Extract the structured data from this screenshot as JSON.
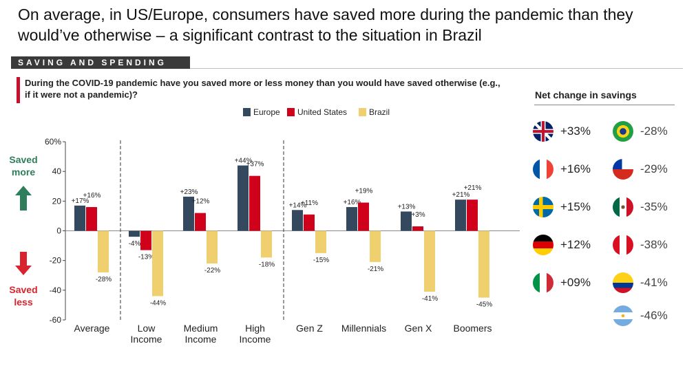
{
  "headline": "On average, in US/Europe, consumers have saved more during the pandemic than they would’ve otherwise – a significant contrast to the situation in Brazil",
  "section_label": "SAVING AND SPENDING",
  "question": "During the COVID-19 pandemic have you saved more or less money than you would have saved otherwise (e.g., if it were not a pandemic)?",
  "colors": {
    "europe": "#34495e",
    "us": "#d0021b",
    "brazil": "#f0cf6e",
    "up_arrow": "#2e7d5b",
    "down_arrow": "#d9232d"
  },
  "side_labels": {
    "saved_more": [
      "Saved",
      "more"
    ],
    "saved_less": [
      "Saved",
      "less"
    ]
  },
  "chart_data": {
    "type": "bar",
    "title": "During the COVID-19 pandemic have you saved more or less money than you would have saved otherwise (e.g., if it were not a pandemic)?",
    "categories": [
      [
        "Average"
      ],
      [
        "Low",
        "Income"
      ],
      [
        "Medium",
        "Income"
      ],
      [
        "High",
        "Income"
      ],
      [
        "Gen Z"
      ],
      [
        "Millennials"
      ],
      [
        "Gen X"
      ],
      [
        "Boomers"
      ]
    ],
    "series": [
      {
        "name": "Europe",
        "values": [
          17,
          -4,
          23,
          44,
          14,
          16,
          13,
          21
        ],
        "labels": [
          "+17%",
          "-4%",
          "+23%",
          "+44%",
          "+14%",
          "+16%",
          "+13%",
          "+21%"
        ]
      },
      {
        "name": "United States",
        "values": [
          16,
          -13,
          12,
          37,
          11,
          19,
          3,
          21
        ],
        "labels": [
          "+16%",
          "-13%",
          "+12%",
          "+37%",
          "+11%",
          "+19%",
          "+3%",
          "+21%"
        ]
      },
      {
        "name": "Brazil",
        "values": [
          -28,
          -44,
          -22,
          -18,
          -15,
          -21,
          -41,
          -45
        ],
        "labels": [
          "-28%",
          "-44%",
          "-22%",
          "-18%",
          "-15%",
          "-21%",
          "-41%",
          "-45%"
        ]
      }
    ],
    "ylim": [
      -60,
      60
    ],
    "yticks": [
      -60,
      -40,
      -20,
      0,
      20,
      40,
      60
    ],
    "ytick_labels": [
      "-60",
      "-40",
      "-20",
      "0",
      "20",
      "40",
      "60%"
    ],
    "xlabel": "",
    "ylabel": "",
    "legend": [
      "Europe",
      "United States",
      "Brazil"
    ]
  },
  "net_change": {
    "title": "Net change in savings",
    "items": [
      {
        "country": "uk",
        "value": "+33%",
        "positive": true
      },
      {
        "country": "france",
        "value": "+16%",
        "positive": true
      },
      {
        "country": "sweden",
        "value": "+15%",
        "positive": true
      },
      {
        "country": "germany",
        "value": "+12%",
        "positive": true
      },
      {
        "country": "italy",
        "value": "+09%",
        "positive": true
      },
      {
        "country": "brazil",
        "value": "-28%",
        "positive": false
      },
      {
        "country": "chile",
        "value": "-29%",
        "positive": false
      },
      {
        "country": "mexico",
        "value": "-35%",
        "positive": false
      },
      {
        "country": "peru",
        "value": "-38%",
        "positive": false
      },
      {
        "country": "colombia",
        "value": "-41%",
        "positive": false
      },
      {
        "country": "argentina",
        "value": "-46%",
        "positive": false
      }
    ]
  }
}
